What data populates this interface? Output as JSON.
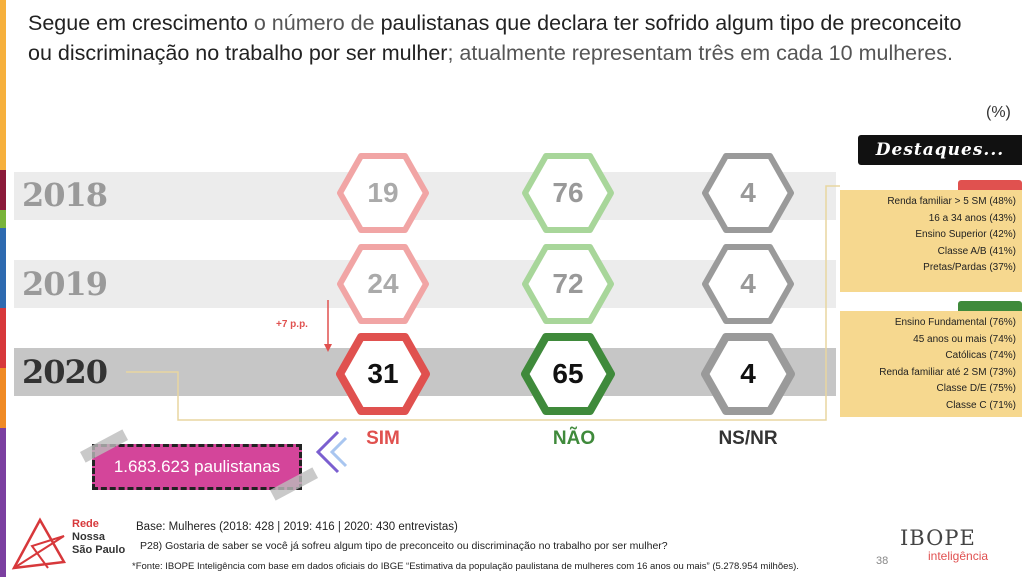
{
  "title": {
    "part1": "Segue em crescimento",
    "part2": " o número de ",
    "part3": "paulistanas que declara ter sofrido algum tipo de preconceito ou discriminação no trabalho por ser mulher",
    "part4": "; atualmente representam três em cada 10 mulheres."
  },
  "unit_label": "(%)",
  "destaques_label": "Destaques...",
  "columns": {
    "sim": "SIM",
    "nao": "NÃO",
    "nsnr": "NS/NR"
  },
  "rows": [
    {
      "year": "2018",
      "sim": "19",
      "nao": "76",
      "nsnr": "4"
    },
    {
      "year": "2019",
      "sim": "24",
      "nao": "72",
      "nsnr": "4"
    },
    {
      "year": "2020",
      "sim": "31",
      "nao": "65",
      "nsnr": "4"
    }
  ],
  "delta_label": "+7 p.p.",
  "callout": "1.683.623 paulistanas",
  "highlights_sim": [
    "Renda familiar > 5 SM (48%)",
    "16 a 34 anos (43%)",
    "Ensino Superior (42%)",
    "Classe A/B (41%)",
    "Pretas/Pardas (37%)"
  ],
  "highlights_nao": [
    "Ensino Fundamental (76%)",
    "45 anos ou mais (74%)",
    "Católicas (74%)",
    "Renda familiar até 2 SM (73%)",
    "Classe D/E (75%)",
    "Classe C (71%)"
  ],
  "footer": {
    "base": "Base: Mulheres (2018: 428 | 2019: 416 | 2020: 430 entrevistas)",
    "question": "P28) Gostaria de saber se você já sofreu algum tipo de preconceito ou discriminação no trabalho por ser mulher?",
    "source": "*Fonte: IBOPE Inteligência com base em dados oficiais do IBGE  “Estimativa da população paulistana de mulheres com 16 anos ou mais” (5.278.954 milhões).",
    "page": "38"
  },
  "logos": {
    "rede_line1": "Rede",
    "rede_line2": "Nossa",
    "rede_line3": "São Paulo",
    "ibope": "IBOPE",
    "inteligencia": "inteligência"
  },
  "colors": {
    "sim_light": "#f1a5a5",
    "sim_strong": "#e0514f",
    "nao_light": "#a8d69a",
    "nao_strong": "#3f8a3b",
    "nsnr": "#9a9a9a",
    "callout": "#d4459a",
    "panel": "#f6d88f"
  }
}
